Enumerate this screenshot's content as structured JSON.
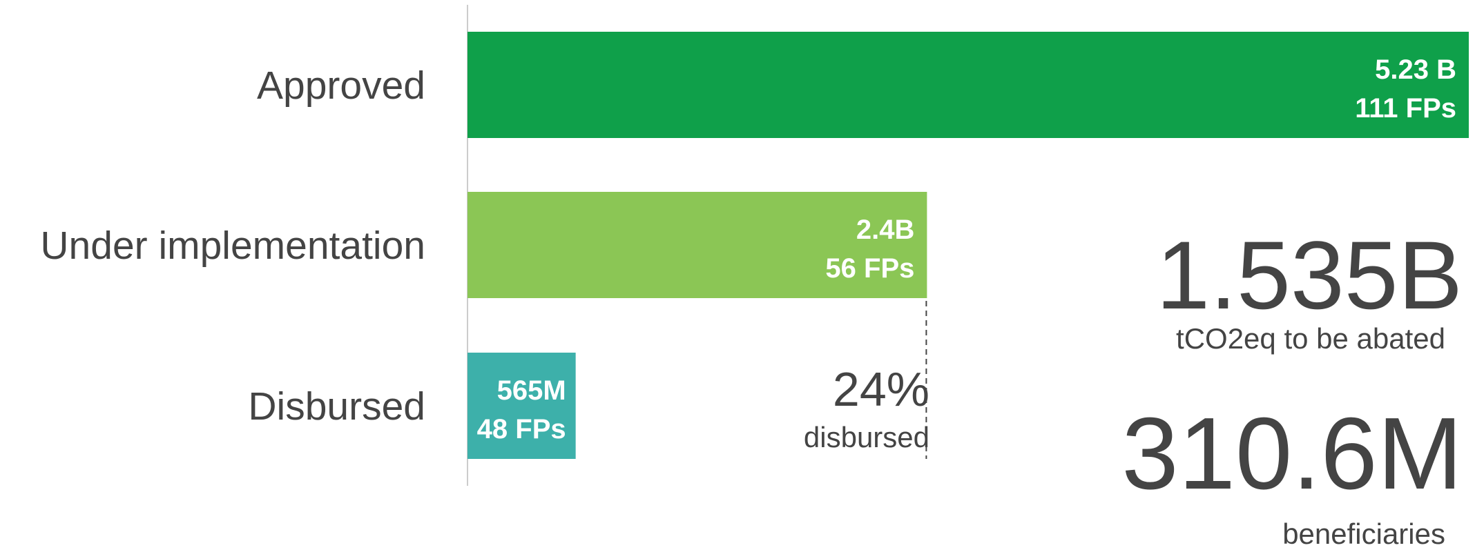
{
  "chart_data": {
    "type": "barh",
    "categories": [
      "Approved",
      "Under implementation",
      "Disbursed"
    ],
    "values": [
      5230000000,
      2400000000,
      565000000
    ],
    "value_labels": [
      "5.23 B",
      "2.4B",
      "565M"
    ],
    "count_labels": [
      "111 FPs",
      "56 FPs",
      "48 FPs"
    ],
    "colors": [
      "#0fa04a",
      "#8bc655",
      "#3db0aa"
    ],
    "xlim": [
      0,
      5230000000
    ],
    "share": {
      "value": "24%",
      "label": "disbursed"
    },
    "stats": [
      {
        "value": "1.535B",
        "label": "tCO2eq to be abated"
      },
      {
        "value": "310.6M",
        "label": "beneficiaries"
      }
    ]
  }
}
